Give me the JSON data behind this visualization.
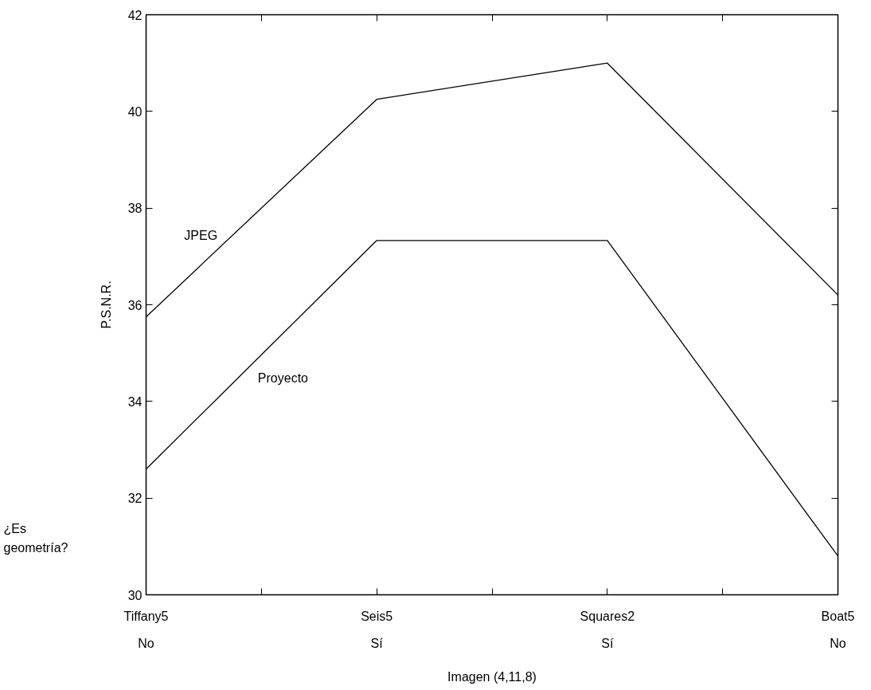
{
  "chart_data": {
    "type": "line",
    "xlabel": "Imagen (4,11,8)",
    "ylabel": "P.S.N.R.",
    "categories": [
      "Tiffany5",
      "Seis5",
      "Squares2",
      "Boat5"
    ],
    "series": [
      {
        "name": "JPEG",
        "color": "#000000",
        "values": [
          35.75,
          40.25,
          41.0,
          36.2
        ]
      },
      {
        "name": "Proyecto",
        "color": "#000000",
        "values": [
          32.6,
          37.33,
          37.33,
          30.8
        ]
      }
    ],
    "ylim": [
      30,
      42
    ],
    "yticks": [
      30,
      32,
      34,
      36,
      38,
      40,
      42
    ],
    "grid": false,
    "legend": false,
    "marker": "none",
    "line_style": "solid",
    "annotations": [
      "¿Es geometría?",
      "No",
      "Sí",
      "Sí",
      "No"
    ]
  }
}
